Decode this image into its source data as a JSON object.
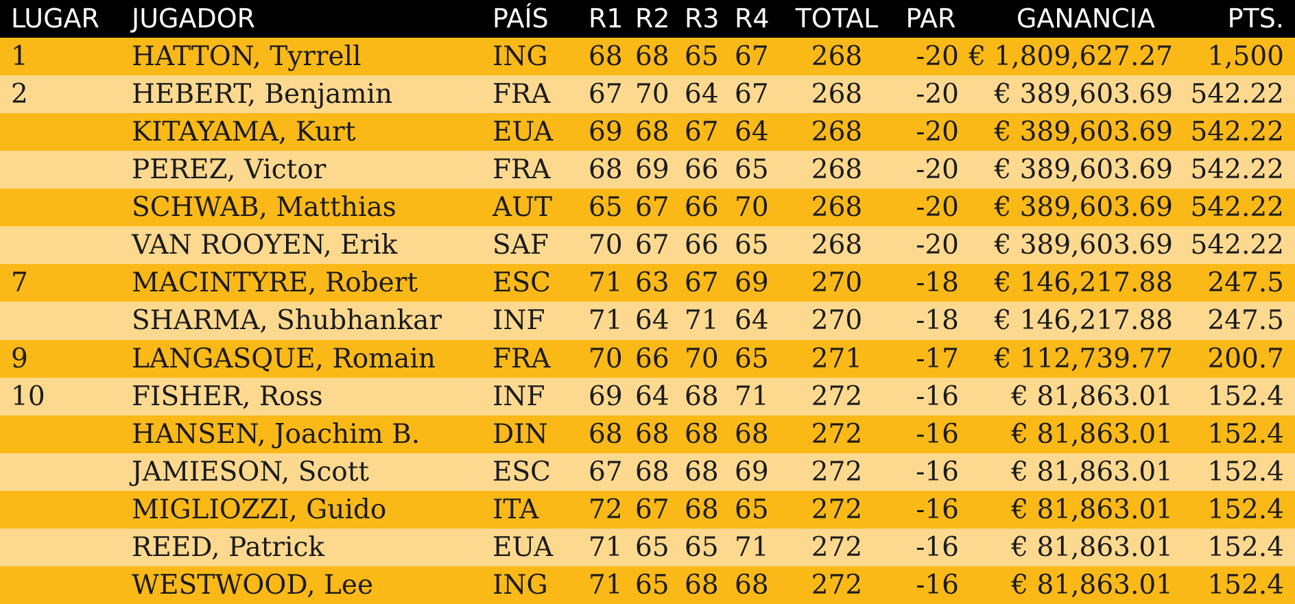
{
  "table": {
    "header": [
      "LUGAR",
      "JUGADOR",
      "PAÍS",
      "R1",
      "R2",
      "R3",
      "R4",
      "TOTAL",
      "PAR",
      "GANANCIA",
      "PTS."
    ],
    "rows": [
      [
        "1",
        "HATTON, Tyrrell",
        "ING",
        68,
        68,
        65,
        67,
        268,
        -20,
        "€ 1,809,627.27",
        "1,500"
      ],
      [
        "2",
        "HEBERT, Benjamin",
        "FRA",
        67,
        70,
        64,
        67,
        268,
        -20,
        "€ 389,603.69",
        542.22
      ],
      [
        null,
        "KITAYAMA, Kurt",
        "EUA",
        69,
        68,
        67,
        64,
        268,
        -20,
        "€ 389,603.69",
        542.22
      ],
      [
        null,
        "PEREZ, Victor",
        "FRA",
        68,
        69,
        66,
        65,
        268,
        -20,
        "€ 389,603.69",
        542.22
      ],
      [
        null,
        "SCHWAB, Matthias",
        "AUT",
        65,
        67,
        66,
        70,
        268,
        -20,
        "€ 389,603.69",
        542.22
      ],
      [
        null,
        "VAN ROOYEN, Erik",
        "SAF",
        70,
        67,
        66,
        65,
        268,
        -20,
        "€ 389,603.69",
        542.22
      ],
      [
        "7",
        "MACINTYRE, Robert",
        "ESC",
        71,
        63,
        67,
        69,
        270,
        -18,
        "€ 146,217.88",
        247.5
      ],
      [
        null,
        "SHARMA, Shubhankar",
        "INF",
        71,
        64,
        71,
        64,
        270,
        -18,
        "€ 146,217.88",
        247.5
      ],
      [
        "9",
        "LANGASQUE, Romain",
        "FRA",
        70,
        66,
        70,
        65,
        271,
        -17,
        "€ 112,739.77",
        200.7
      ],
      [
        "10",
        "FISHER, Ross",
        "INF",
        69,
        64,
        68,
        71,
        272,
        -16,
        "€ 81,863.01",
        152.4
      ],
      [
        null,
        "HANSEN, Joachim B.",
        "DIN",
        68,
        68,
        68,
        68,
        272,
        -16,
        "€ 81,863.01",
        152.4
      ],
      [
        null,
        "JAMIESON, Scott",
        "ESC",
        67,
        68,
        68,
        69,
        272,
        -16,
        "€ 81,863.01",
        152.4
      ],
      [
        null,
        "MIGLIOZZI, Guido",
        "ITA",
        72,
        67,
        68,
        65,
        272,
        -16,
        "€ 81,863.01",
        152.4
      ],
      [
        null,
        "REED, Patrick",
        "EUA",
        71,
        65,
        65,
        71,
        272,
        -16,
        "€ 81,863.01",
        152.4
      ],
      [
        null,
        "WESTWOOD, Lee",
        "ING",
        71,
        65,
        68,
        68,
        272,
        -16,
        "€ 81,863.01",
        152.4
      ]
    ]
  }
}
